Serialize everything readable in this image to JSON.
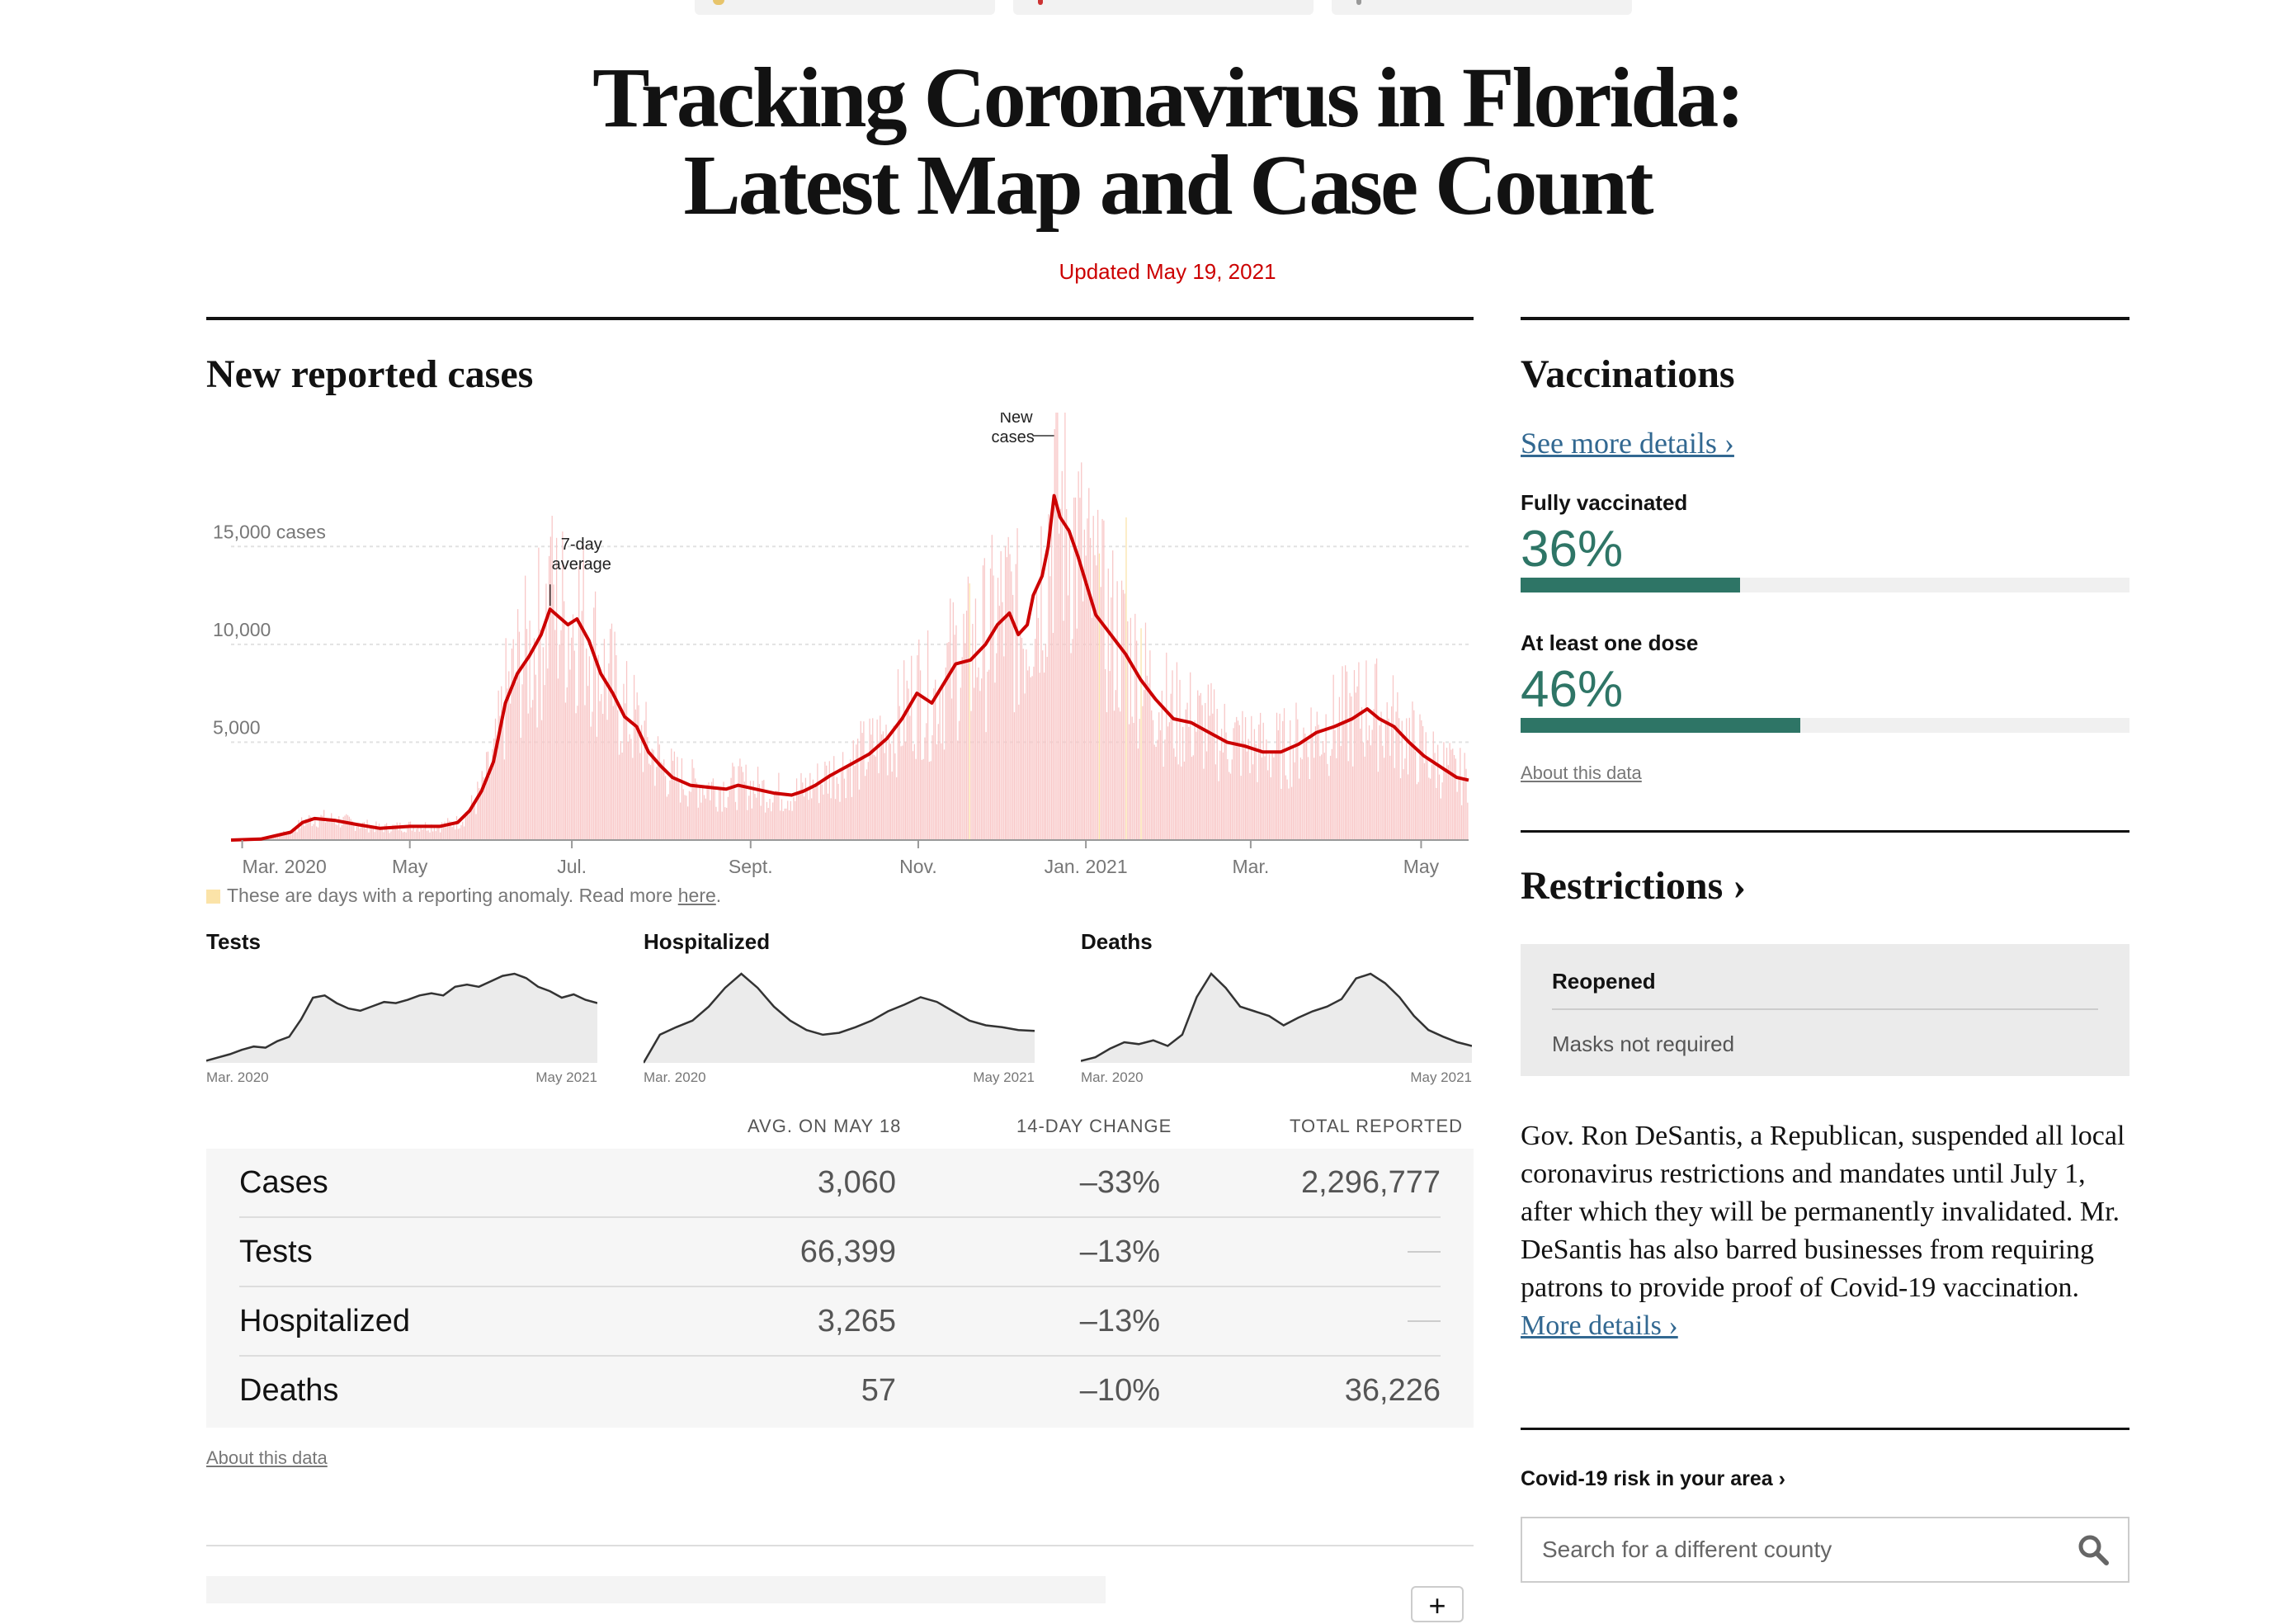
{
  "page": {
    "headline_line1": "Tracking Coronavirus in Florida:",
    "headline_line2": "Latest Map and Case Count",
    "updated": "Updated May 19, 2021"
  },
  "cases_section": {
    "title": "New reported cases",
    "anomaly_note": "These are days with a reporting anomaly. Read more ",
    "anomaly_link": "here",
    "anomaly_period": "."
  },
  "chart_data": {
    "type": "bar",
    "title": "New reported cases",
    "y_tick_labels": [
      "15,000 cases",
      "10,000",
      "5,000"
    ],
    "y_ticks": [
      15000,
      10000,
      5000
    ],
    "ylim": [
      0,
      21000
    ],
    "x_tick_labels": [
      "Mar. 2020",
      "May",
      "Jul.",
      "Sept.",
      "Nov.",
      "Jan. 2021",
      "Mar.",
      "May"
    ],
    "annotations": {
      "avg_line1": "7-day",
      "avg_line2": "average",
      "new_line1": "New",
      "new_line2": "cases"
    },
    "series": [
      {
        "name": "7-day average",
        "points": [
          [
            0,
            0
          ],
          [
            20,
            50
          ],
          [
            40,
            400
          ],
          [
            48,
            900
          ],
          [
            56,
            1100
          ],
          [
            70,
            1000
          ],
          [
            84,
            800
          ],
          [
            100,
            600
          ],
          [
            120,
            700
          ],
          [
            140,
            700
          ],
          [
            152,
            900
          ],
          [
            160,
            1500
          ],
          [
            168,
            2500
          ],
          [
            176,
            4000
          ],
          [
            184,
            7000
          ],
          [
            192,
            8500
          ],
          [
            200,
            9400
          ],
          [
            208,
            10500
          ],
          [
            214,
            11800
          ],
          [
            220,
            11400
          ],
          [
            226,
            11000
          ],
          [
            232,
            11300
          ],
          [
            240,
            10200
          ],
          [
            248,
            8500
          ],
          [
            256,
            7500
          ],
          [
            264,
            6300
          ],
          [
            272,
            5800
          ],
          [
            280,
            4500
          ],
          [
            288,
            3800
          ],
          [
            296,
            3200
          ],
          [
            308,
            2800
          ],
          [
            320,
            2700
          ],
          [
            332,
            2600
          ],
          [
            340,
            2800
          ],
          [
            352,
            2600
          ],
          [
            364,
            2400
          ],
          [
            376,
            2300
          ],
          [
            384,
            2500
          ],
          [
            392,
            2800
          ],
          [
            402,
            3300
          ],
          [
            414,
            3800
          ],
          [
            428,
            4400
          ],
          [
            440,
            5200
          ],
          [
            450,
            6200
          ],
          [
            460,
            7500
          ],
          [
            470,
            7000
          ],
          [
            478,
            8000
          ],
          [
            486,
            9000
          ],
          [
            496,
            9200
          ],
          [
            506,
            10000
          ],
          [
            514,
            11000
          ],
          [
            522,
            11600
          ],
          [
            528,
            10500
          ],
          [
            534,
            11000
          ],
          [
            538,
            12500
          ],
          [
            544,
            13500
          ],
          [
            548,
            15000
          ],
          [
            552,
            17600
          ],
          [
            556,
            16500
          ],
          [
            562,
            15800
          ],
          [
            568,
            14500
          ],
          [
            574,
            13000
          ],
          [
            580,
            11500
          ],
          [
            590,
            10500
          ],
          [
            600,
            9500
          ],
          [
            610,
            8200
          ],
          [
            620,
            7200
          ],
          [
            632,
            6200
          ],
          [
            644,
            6000
          ],
          [
            656,
            5500
          ],
          [
            668,
            5000
          ],
          [
            680,
            4800
          ],
          [
            692,
            4500
          ],
          [
            704,
            4500
          ],
          [
            716,
            4900
          ],
          [
            728,
            5500
          ],
          [
            740,
            5800
          ],
          [
            752,
            6200
          ],
          [
            762,
            6700
          ],
          [
            770,
            6200
          ],
          [
            780,
            5800
          ],
          [
            790,
            5000
          ],
          [
            800,
            4300
          ],
          [
            812,
            3700
          ],
          [
            822,
            3200
          ],
          [
            830,
            3060
          ]
        ]
      }
    ],
    "daily_peak_values": [
      15500,
      21000
    ],
    "anomaly_day_count": 4
  },
  "mini_charts": [
    {
      "title": "Tests",
      "start_label": "Mar. 2020",
      "end_label": "May 2021",
      "values": [
        2,
        5,
        8,
        12,
        15,
        14,
        20,
        24,
        40,
        60,
        62,
        55,
        50,
        48,
        52,
        56,
        55,
        58,
        62,
        64,
        62,
        70,
        72,
        70,
        75,
        80,
        82,
        78,
        70,
        66,
        60,
        63,
        58,
        55
      ]
    },
    {
      "title": "Hospitalized",
      "start_label": "Mar. 2020",
      "end_label": "May 2021",
      "values": [
        0,
        30,
        38,
        45,
        60,
        80,
        95,
        80,
        60,
        45,
        35,
        30,
        32,
        38,
        45,
        55,
        62,
        70,
        65,
        55,
        45,
        40,
        38,
        35,
        34
      ]
    },
    {
      "title": "Deaths",
      "start_label": "Mar. 2020",
      "end_label": "May 2021",
      "values": [
        2,
        6,
        15,
        22,
        20,
        24,
        18,
        30,
        70,
        95,
        80,
        60,
        55,
        50,
        40,
        48,
        55,
        60,
        68,
        90,
        95,
        85,
        70,
        50,
        35,
        28,
        22,
        18
      ]
    }
  ],
  "stats_table": {
    "headers": [
      "AVG. ON MAY 18",
      "14-DAY CHANGE",
      "TOTAL REPORTED"
    ],
    "rows": [
      {
        "name": "Cases",
        "avg": "3,060",
        "change": "–33%",
        "total": "2,296,777"
      },
      {
        "name": "Tests",
        "avg": "66,399",
        "change": "–13%",
        "total": ""
      },
      {
        "name": "Hospitalized",
        "avg": "3,265",
        "change": "–13%",
        "total": ""
      },
      {
        "name": "Deaths",
        "avg": "57",
        "change": "–10%",
        "total": "36,226"
      }
    ],
    "about": "About this data"
  },
  "vaccinations": {
    "title": "Vaccinations",
    "details_link": "See more details ›",
    "fully_label": "Fully vaccinated",
    "fully_pct": "36%",
    "fully_value": 36,
    "one_dose_label": "At least one dose",
    "one_dose_pct": "46%",
    "one_dose_value": 46,
    "about": "About this data",
    "color": "#2e7566"
  },
  "restrictions": {
    "title": "Restrictions ›",
    "status": "Reopened",
    "masks": "Masks not required",
    "paragraph": "Gov. Ron DeSantis, a Republican, suspended all local coronavirus restrictions and mandates until July 1, after which they will be permanently invalidated. Mr. DeSantis has also barred businesses from requiring patrons to provide proof of Covid-19 vaccination. ",
    "more_link": "More details ›"
  },
  "risk": {
    "title": "Covid-19 risk in your area ›",
    "search_placeholder": "Search for a different county"
  },
  "map_controls": {
    "zoom_in": "+"
  },
  "colors": {
    "accent_red": "#cc0000",
    "bar_pink": "#f8c6c6",
    "anomaly": "#fbe3a8",
    "vax_green": "#2e7566",
    "link_blue": "#326891"
  }
}
